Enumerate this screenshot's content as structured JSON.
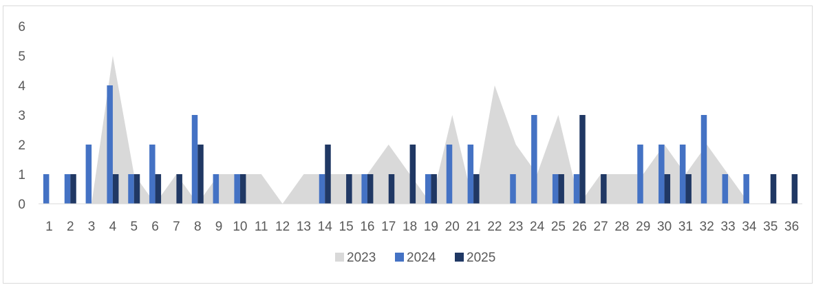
{
  "chart_data": {
    "type": "bar",
    "categories": [
      "1",
      "2",
      "3",
      "4",
      "5",
      "6",
      "7",
      "8",
      "9",
      "10",
      "11",
      "12",
      "13",
      "14",
      "15",
      "16",
      "17",
      "18",
      "19",
      "20",
      "21",
      "22",
      "23",
      "24",
      "25",
      "26",
      "27",
      "28",
      "29",
      "30",
      "31",
      "32",
      "33",
      "34",
      "35",
      "36"
    ],
    "series": [
      {
        "name": "2023",
        "type": "area",
        "color": "#d9d9d9",
        "values": [
          0,
          0,
          0,
          5,
          1,
          0,
          1,
          0,
          1,
          1,
          1,
          0,
          1,
          1,
          1,
          1,
          2,
          1,
          0,
          3,
          0,
          4,
          2,
          1,
          3,
          0,
          1,
          1,
          1,
          2,
          1,
          2,
          1,
          0,
          0,
          0
        ]
      },
      {
        "name": "2024",
        "type": "bar",
        "color": "#4472c4",
        "values": [
          1,
          1,
          2,
          4,
          1,
          2,
          0,
          3,
          1,
          1,
          0,
          0,
          0,
          1,
          0,
          1,
          0,
          0,
          1,
          2,
          2,
          0,
          1,
          3,
          1,
          1,
          0,
          0,
          2,
          2,
          2,
          3,
          1,
          1,
          0,
          0
        ]
      },
      {
        "name": "2025",
        "type": "bar",
        "color": "#203864",
        "values": [
          0,
          1,
          0,
          1,
          1,
          1,
          1,
          2,
          0,
          1,
          0,
          0,
          0,
          2,
          1,
          1,
          1,
          2,
          1,
          0,
          1,
          0,
          0,
          0,
          1,
          3,
          1,
          0,
          0,
          1,
          1,
          0,
          0,
          0,
          1,
          1
        ]
      }
    ],
    "yticks": [
      "0",
      "1",
      "2",
      "3",
      "4",
      "5",
      "6"
    ],
    "ylim": [
      0,
      6
    ],
    "grid": false,
    "legend": "bottom"
  }
}
